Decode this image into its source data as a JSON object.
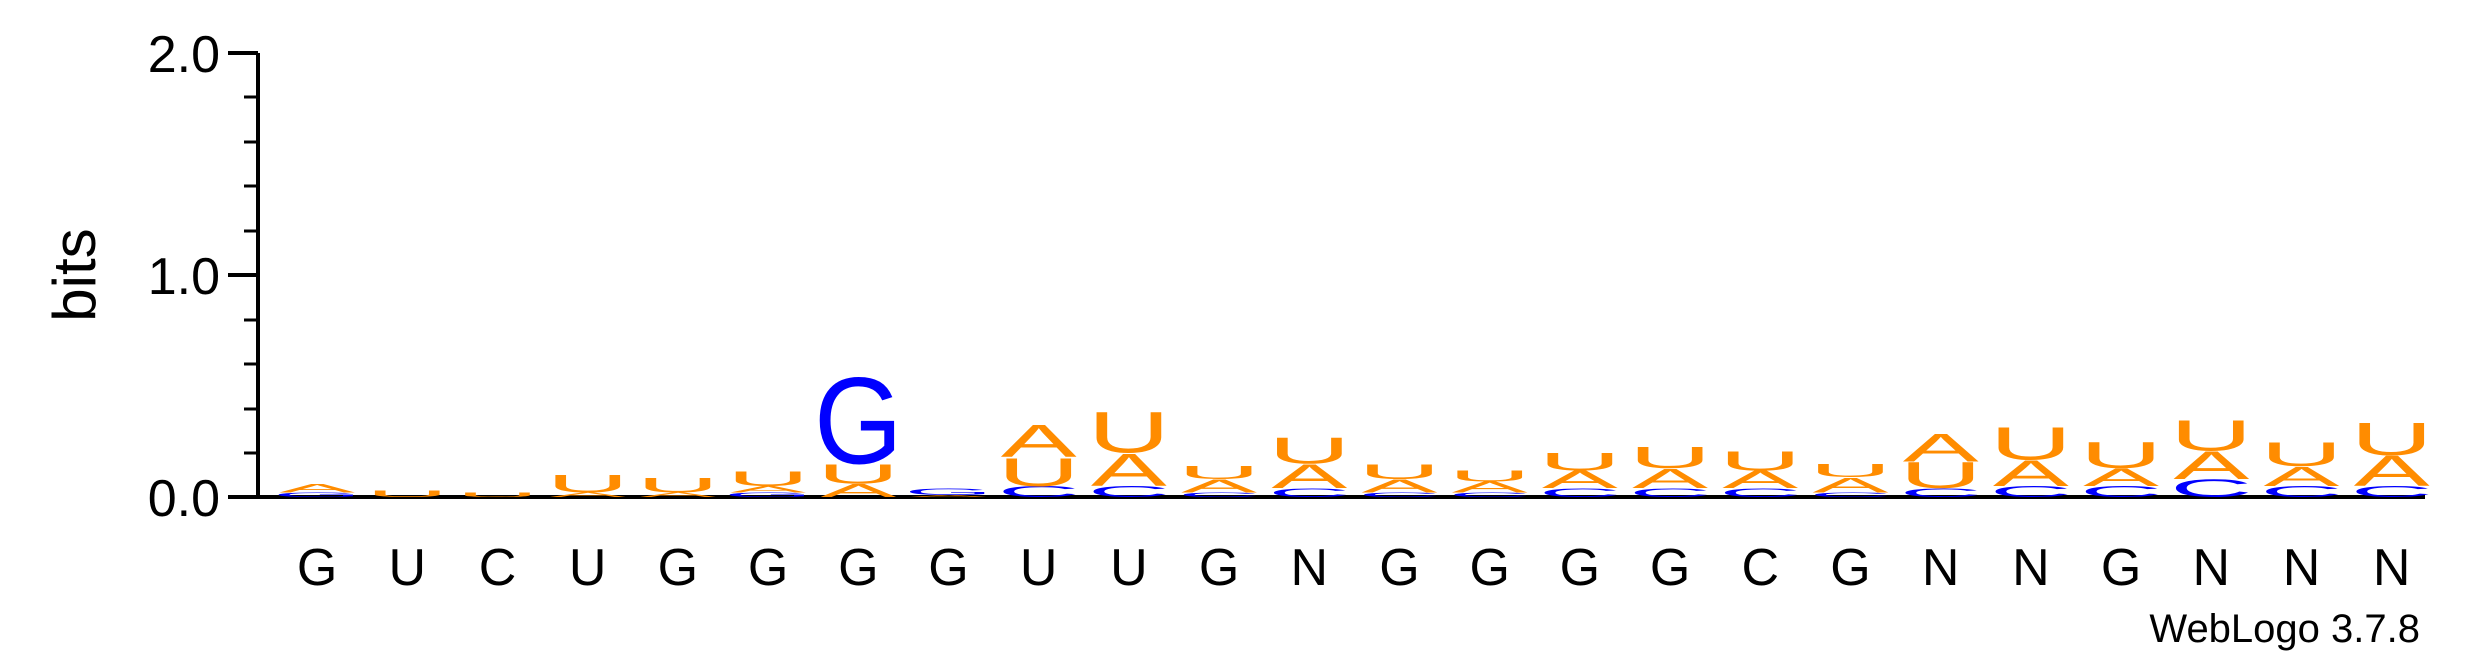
{
  "chart_data": {
    "type": "sequence-logo",
    "ylabel": "bits",
    "ylim": [
      0,
      2.0
    ],
    "yticks": [
      "0.0",
      "1.0",
      "2.0"
    ],
    "colors": {
      "A": "#ff8c00",
      "U": "#ff8c00",
      "G": "#0000ff",
      "C": "#0000ff"
    },
    "positions": [
      {
        "label": "G",
        "stack": [
          {
            "base": "G",
            "bits": 0.02
          },
          {
            "base": "A",
            "bits": 0.04
          }
        ]
      },
      {
        "label": "U",
        "stack": [
          {
            "base": "U",
            "bits": 0.03
          }
        ]
      },
      {
        "label": "C",
        "stack": [
          {
            "base": "U",
            "bits": 0.02
          }
        ]
      },
      {
        "label": "U",
        "stack": [
          {
            "base": "A",
            "bits": 0.02
          },
          {
            "base": "U",
            "bits": 0.08
          }
        ]
      },
      {
        "label": "G",
        "stack": [
          {
            "base": "A",
            "bits": 0.02
          },
          {
            "base": "U",
            "bits": 0.07
          }
        ]
      },
      {
        "label": "G",
        "stack": [
          {
            "base": "G",
            "bits": 0.02
          },
          {
            "base": "A",
            "bits": 0.03
          },
          {
            "base": "U",
            "bits": 0.07
          }
        ]
      },
      {
        "label": "G",
        "stack": [
          {
            "base": "A",
            "bits": 0.06
          },
          {
            "base": "U",
            "bits": 0.09
          },
          {
            "base": "G",
            "bits": 0.4
          }
        ]
      },
      {
        "label": "G",
        "stack": [
          {
            "base": "A",
            "bits": 0.01
          },
          {
            "base": "G",
            "bits": 0.03
          }
        ]
      },
      {
        "label": "U",
        "stack": [
          {
            "base": "C",
            "bits": 0.05
          },
          {
            "base": "U",
            "bits": 0.13
          },
          {
            "base": "A",
            "bits": 0.15
          }
        ]
      },
      {
        "label": "U",
        "stack": [
          {
            "base": "C",
            "bits": 0.05
          },
          {
            "base": "A",
            "bits": 0.15
          },
          {
            "base": "U",
            "bits": 0.19
          }
        ]
      },
      {
        "label": "G",
        "stack": [
          {
            "base": "C",
            "bits": 0.02
          },
          {
            "base": "A",
            "bits": 0.06
          },
          {
            "base": "U",
            "bits": 0.06
          }
        ]
      },
      {
        "label": "N",
        "stack": [
          {
            "base": "C",
            "bits": 0.04
          },
          {
            "base": "A",
            "bits": 0.11
          },
          {
            "base": "U",
            "bits": 0.12
          }
        ]
      },
      {
        "label": "G",
        "stack": [
          {
            "base": "C",
            "bits": 0.02
          },
          {
            "base": "A",
            "bits": 0.06
          },
          {
            "base": "U",
            "bits": 0.07
          }
        ]
      },
      {
        "label": "G",
        "stack": [
          {
            "base": "C",
            "bits": 0.02
          },
          {
            "base": "A",
            "bits": 0.05
          },
          {
            "base": "U",
            "bits": 0.05
          }
        ]
      },
      {
        "label": "G",
        "stack": [
          {
            "base": "C",
            "bits": 0.04
          },
          {
            "base": "A",
            "bits": 0.08
          },
          {
            "base": "U",
            "bits": 0.08
          }
        ]
      },
      {
        "label": "G",
        "stack": [
          {
            "base": "C",
            "bits": 0.04
          },
          {
            "base": "A",
            "bits": 0.09
          },
          {
            "base": "U",
            "bits": 0.1
          }
        ]
      },
      {
        "label": "C",
        "stack": [
          {
            "base": "C",
            "bits": 0.04
          },
          {
            "base": "A",
            "bits": 0.08
          },
          {
            "base": "U",
            "bits": 0.09
          }
        ]
      },
      {
        "label": "G",
        "stack": [
          {
            "base": "C",
            "bits": 0.02
          },
          {
            "base": "A",
            "bits": 0.07
          },
          {
            "base": "U",
            "bits": 0.06
          }
        ]
      },
      {
        "label": "N",
        "stack": [
          {
            "base": "C",
            "bits": 0.04
          },
          {
            "base": "U",
            "bits": 0.12
          },
          {
            "base": "A",
            "bits": 0.13
          }
        ]
      },
      {
        "label": "N",
        "stack": [
          {
            "base": "C",
            "bits": 0.05
          },
          {
            "base": "A",
            "bits": 0.12
          },
          {
            "base": "U",
            "bits": 0.15
          }
        ]
      },
      {
        "label": "G",
        "stack": [
          {
            "base": "C",
            "bits": 0.05
          },
          {
            "base": "A",
            "bits": 0.08
          },
          {
            "base": "U",
            "bits": 0.12
          }
        ]
      },
      {
        "label": "N",
        "stack": [
          {
            "base": "C",
            "bits": 0.08
          },
          {
            "base": "A",
            "bits": 0.13
          },
          {
            "base": "U",
            "bits": 0.14
          }
        ]
      },
      {
        "label": "N",
        "stack": [
          {
            "base": "C",
            "bits": 0.05
          },
          {
            "base": "A",
            "bits": 0.09
          },
          {
            "base": "U",
            "bits": 0.11
          }
        ]
      },
      {
        "label": "N",
        "stack": [
          {
            "base": "C",
            "bits": 0.05
          },
          {
            "base": "A",
            "bits": 0.14
          },
          {
            "base": "U",
            "bits": 0.15
          }
        ]
      }
    ]
  },
  "credit": "WebLogo 3.7.8"
}
